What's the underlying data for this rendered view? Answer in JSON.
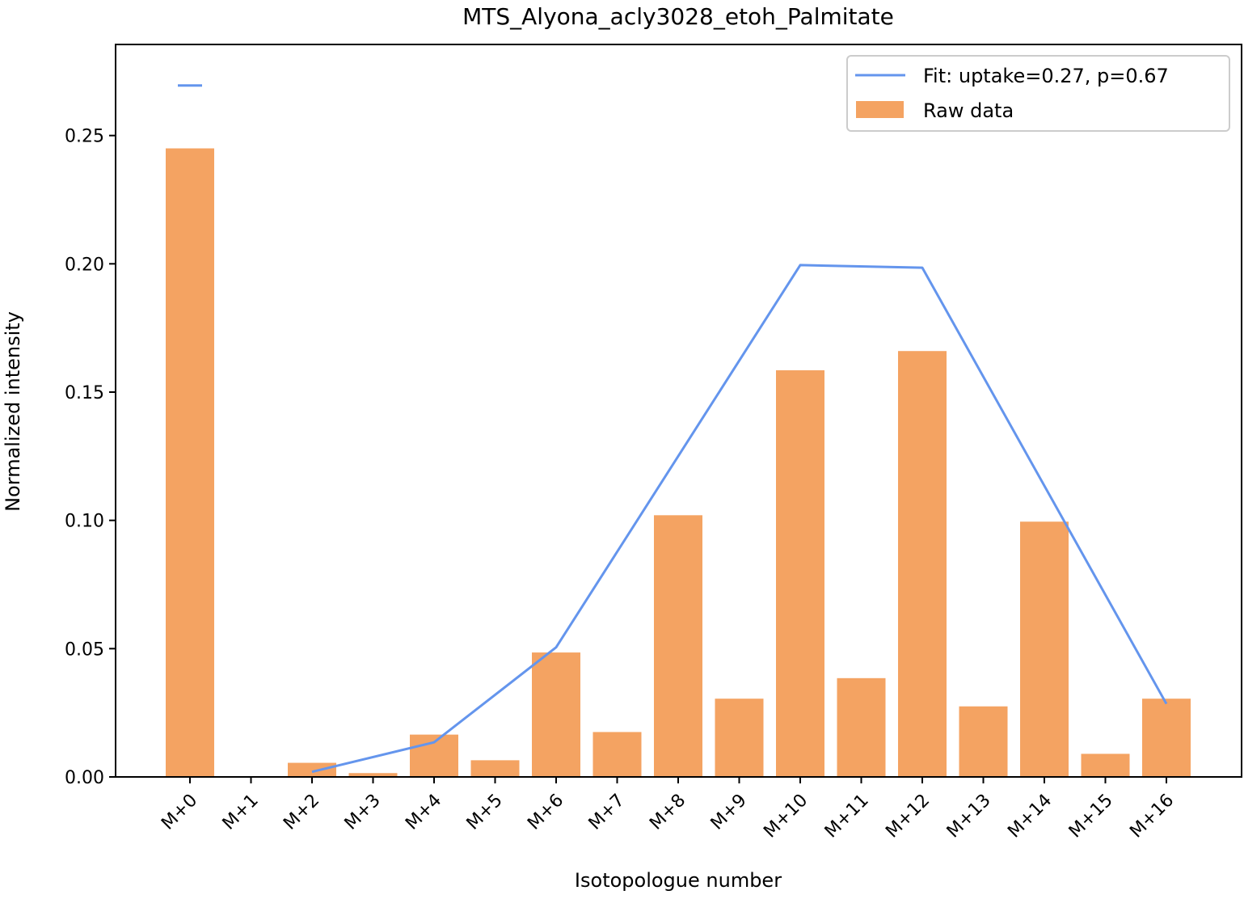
{
  "chart_data": {
    "type": "bar",
    "title": "MTS_Alyona_acly3028_etoh_Palmitate",
    "xlabel": "Isotopologue number",
    "ylabel": "Normalized intensity",
    "categories": [
      "M+0",
      "M+1",
      "M+2",
      "M+3",
      "M+4",
      "M+5",
      "M+6",
      "M+7",
      "M+8",
      "M+9",
      "M+10",
      "M+11",
      "M+12",
      "M+13",
      "M+14",
      "M+15",
      "M+16"
    ],
    "ylim": [
      0,
      0.2855
    ],
    "yticks": [
      0.0,
      0.05,
      0.1,
      0.15,
      0.2,
      0.25
    ],
    "ytick_labels": [
      "0.00",
      "0.05",
      "0.10",
      "0.15",
      "0.20",
      "0.25"
    ],
    "grid": false,
    "legend_position": "top-right",
    "series": [
      {
        "name": "Raw data",
        "kind": "bar",
        "color": "#F4A362",
        "values": [
          0.245,
          0.0,
          0.0055,
          0.0015,
          0.0165,
          0.0065,
          0.0485,
          0.0175,
          0.102,
          0.0305,
          0.1585,
          0.0385,
          0.166,
          0.0275,
          0.0995,
          0.009,
          0.0305
        ]
      },
      {
        "name": "Fit: uptake=0.27, p=0.67",
        "kind": "line",
        "color": "#6495ED",
        "x": [
          "M+2",
          "M+4",
          "M+6",
          "M+10",
          "M+12",
          "M+16"
        ],
        "values": [
          0.002,
          0.0135,
          0.0505,
          0.1995,
          0.1985,
          0.0285
        ]
      }
    ],
    "extra_marks": [
      {
        "kind": "line-segment",
        "color": "#6495ED",
        "category": "M+0",
        "value": 0.2695
      }
    ]
  }
}
